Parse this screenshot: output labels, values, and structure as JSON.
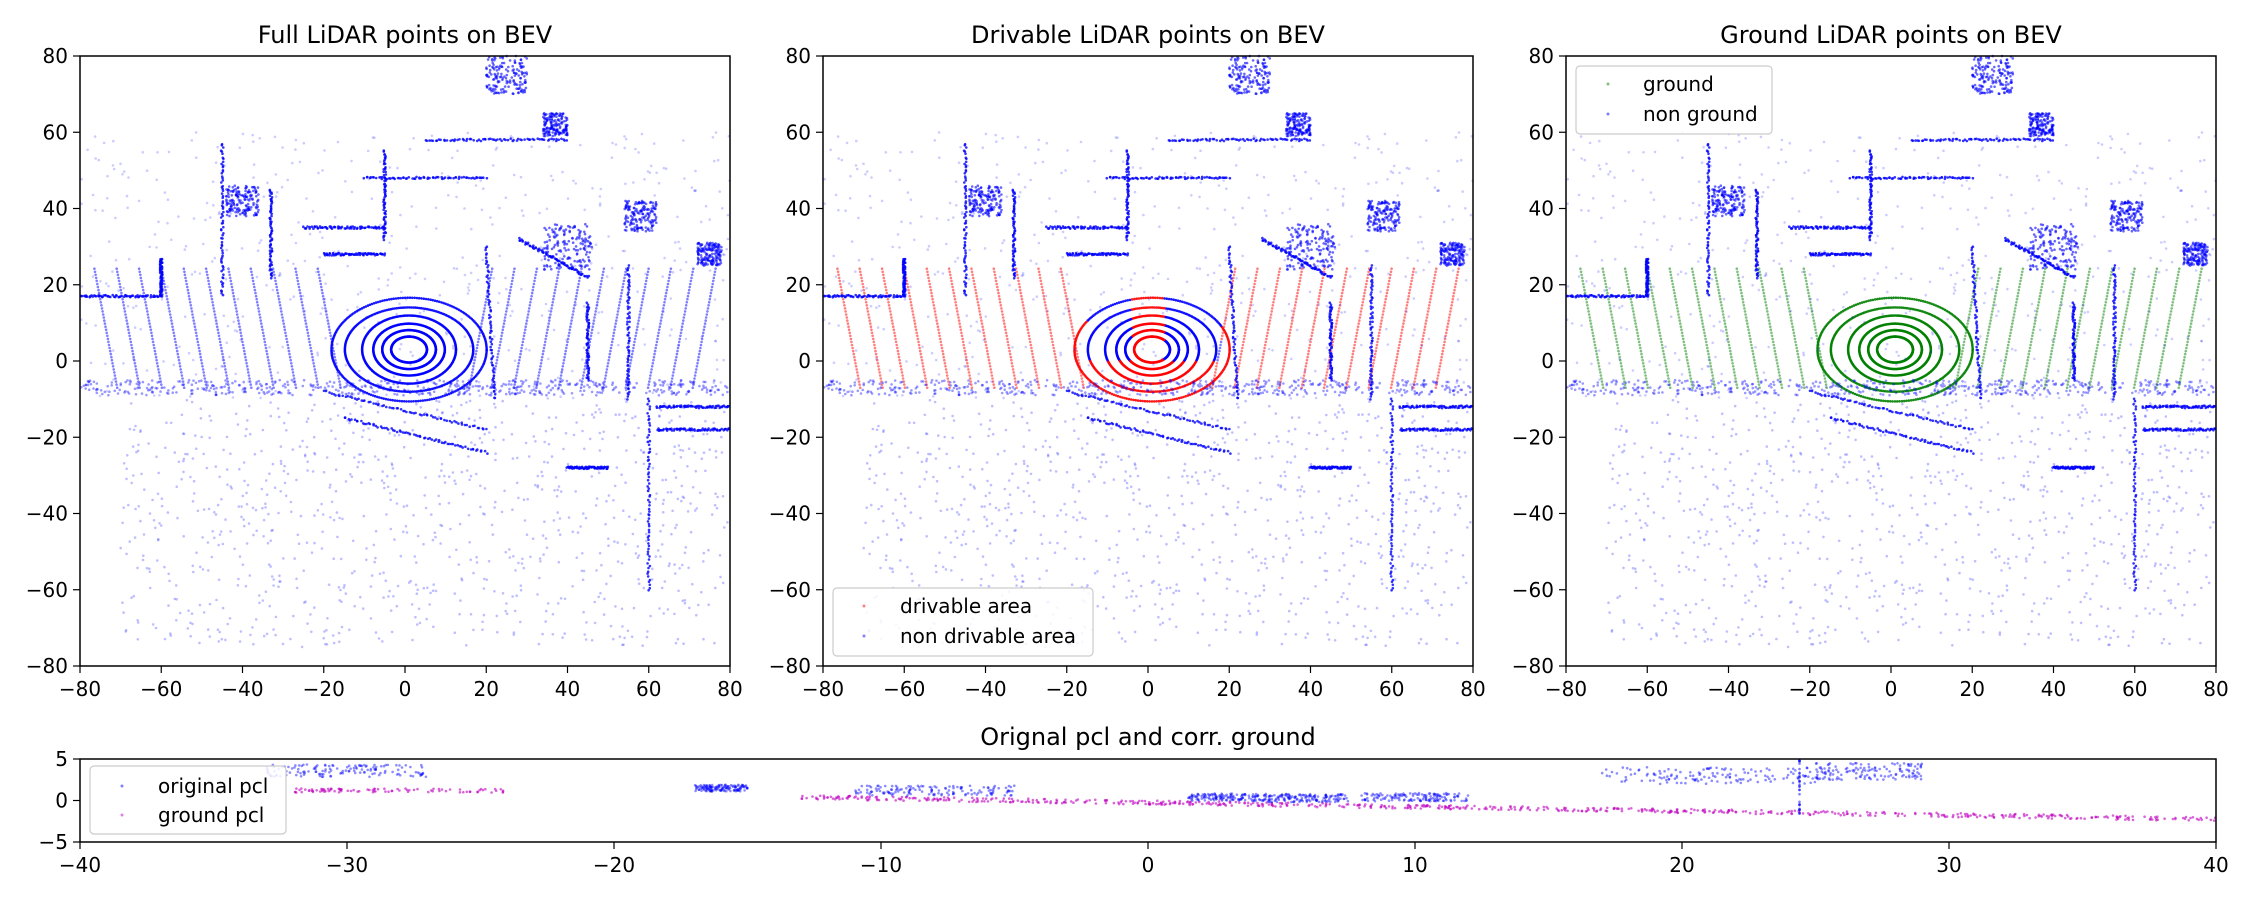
{
  "chart_data": [
    {
      "type": "scatter",
      "title": "Full LiDAR points on BEV",
      "xlim": [
        -80,
        80
      ],
      "ylim": [
        -80,
        80
      ],
      "x_ticks": [
        "−80",
        "−60",
        "−40",
        "−20",
        "0",
        "20",
        "40",
        "60",
        "80"
      ],
      "y_ticks": [
        "80",
        "60",
        "40",
        "20",
        "0",
        "−20",
        "−40",
        "−60",
        "−80"
      ],
      "series": [
        {
          "color": "#0000ff"
        }
      ],
      "legend": null
    },
    {
      "type": "scatter",
      "title": "Drivable LiDAR points on BEV",
      "xlim": [
        -80,
        80
      ],
      "ylim": [
        -80,
        80
      ],
      "x_ticks": [
        "−80",
        "−60",
        "−40",
        "−20",
        "0",
        "20",
        "40",
        "60",
        "80"
      ],
      "y_ticks": [
        "80",
        "60",
        "40",
        "20",
        "0",
        "−20",
        "−40",
        "−60",
        "−80"
      ],
      "series": [
        {
          "name": "drivable area",
          "color": "#ff0000"
        },
        {
          "name": "non drivable area",
          "color": "#0000ff"
        }
      ],
      "legend": "lower-left"
    },
    {
      "type": "scatter",
      "title": "Ground LiDAR points on BEV",
      "xlim": [
        -80,
        80
      ],
      "ylim": [
        -80,
        80
      ],
      "x_ticks": [
        "−80",
        "−60",
        "−40",
        "−20",
        "0",
        "20",
        "40",
        "60",
        "80"
      ],
      "y_ticks": [
        "80",
        "60",
        "40",
        "20",
        "0",
        "−20",
        "−40",
        "−60",
        "−80"
      ],
      "series": [
        {
          "name": "ground",
          "color": "#008000"
        },
        {
          "name": "non ground",
          "color": "#0000ff"
        }
      ],
      "legend": "upper-left"
    },
    {
      "type": "scatter",
      "title": "Orignal pcl and corr. ground",
      "xlim": [
        -40,
        40
      ],
      "ylim": [
        -5,
        5
      ],
      "x_ticks": [
        "−40",
        "−30",
        "−20",
        "−10",
        "0",
        "10",
        "20",
        "30",
        "40"
      ],
      "y_ticks": [
        "5",
        "0",
        "−5"
      ],
      "series": [
        {
          "name": "original pcl",
          "color": "#0000ff"
        },
        {
          "name": "ground pcl",
          "color": "#bf00bf"
        }
      ],
      "legend": "upper-left"
    }
  ]
}
